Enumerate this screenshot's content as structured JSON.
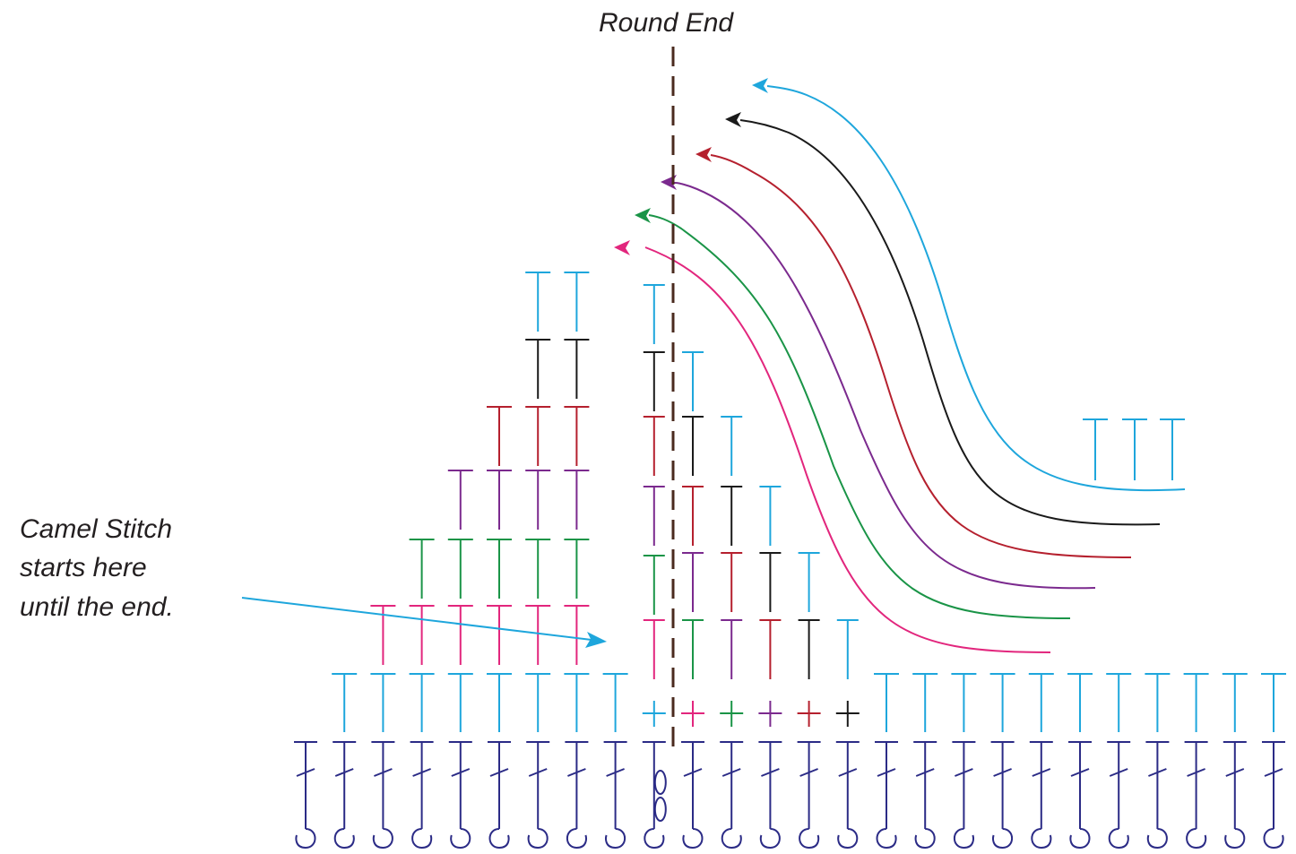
{
  "title": "Round End",
  "note": [
    "Camel Stitch",
    "starts here",
    "until the end."
  ],
  "colors": {
    "base": "#2b2b86",
    "blue": "#1ea6dc",
    "black": "#1a1a1a",
    "red": "#b5202e",
    "purple": "#7b2a8e",
    "green": "#1a9447",
    "pink": "#e2267d",
    "divider": "#4a2a1e"
  },
  "rows": [
    {
      "name": "foundation",
      "color": "base",
      "stitches": 26,
      "stitch": "double-crochet-hook"
    },
    {
      "name": "round-1",
      "color": "blue",
      "stitches": 8,
      "stitch": "half-double-crochet"
    },
    {
      "name": "round-2",
      "color": "pink",
      "stitches": 6,
      "stitch": "half-double-crochet"
    },
    {
      "name": "round-3",
      "color": "green",
      "stitches": 6,
      "stitch": "half-double-crochet"
    },
    {
      "name": "round-4",
      "color": "purple",
      "stitches": 5,
      "stitch": "half-double-crochet"
    },
    {
      "name": "round-5",
      "color": "red",
      "stitches": 4,
      "stitch": "half-double-crochet"
    },
    {
      "name": "round-6",
      "color": "black",
      "stitches": 3,
      "stitch": "half-double-crochet"
    },
    {
      "name": "round-7",
      "color": "blue",
      "stitches": 3,
      "stitch": "half-double-crochet"
    }
  ]
}
